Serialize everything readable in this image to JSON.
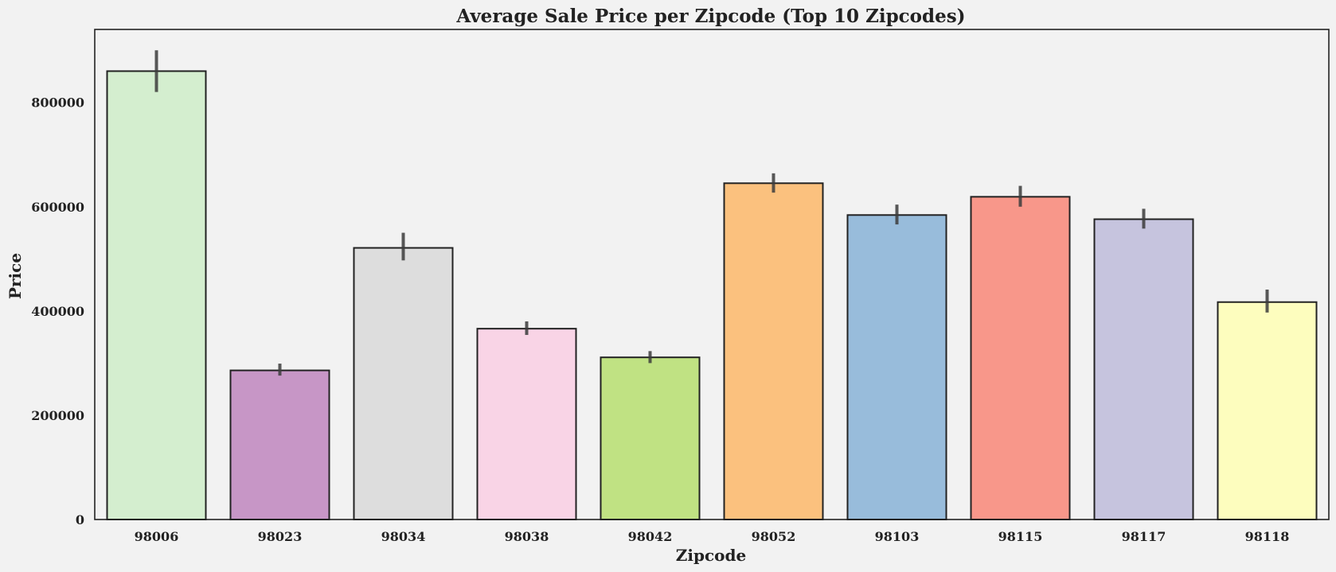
{
  "chart_data": {
    "type": "bar",
    "title": "Average Sale Price per Zipcode (Top 10 Zipcodes)",
    "xlabel": "Zipcode",
    "ylabel": "Price",
    "categories": [
      "98006",
      "98023",
      "98034",
      "98038",
      "98042",
      "98052",
      "98103",
      "98115",
      "98117",
      "98118"
    ],
    "values": [
      860000,
      286000,
      521000,
      366000,
      311000,
      645000,
      584000,
      619000,
      576000,
      417000
    ],
    "error_low": [
      820000,
      276000,
      497000,
      354000,
      300000,
      627000,
      566000,
      600000,
      558000,
      397000
    ],
    "error_high": [
      900000,
      299000,
      550000,
      380000,
      323000,
      664000,
      604000,
      640000,
      596000,
      441000
    ],
    "ylim": [
      0,
      940000
    ],
    "yticks": [
      0,
      200000,
      400000,
      600000,
      800000
    ],
    "ytick_labels": [
      "0",
      "200000",
      "400000",
      "600000",
      "800000"
    ],
    "grid": false,
    "legend": "none",
    "colors": [
      "#d4eecf",
      "#c796c6",
      "#dddddd",
      "#f9d4e6",
      "#c0e283",
      "#fbc17e",
      "#98bcdb",
      "#f8978a",
      "#c6c4de",
      "#fdfdbe"
    ],
    "edge_color": "#222222",
    "error_color": "#3c3c3c"
  }
}
